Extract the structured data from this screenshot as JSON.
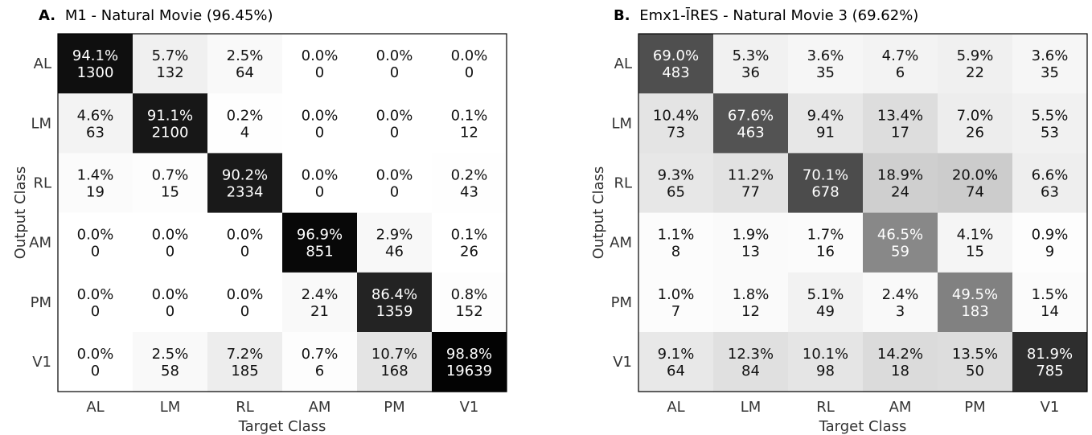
{
  "chart_data": [
    {
      "type": "heatmap",
      "panel_label": "A.",
      "title": "M1 - Natural Movie (96.45%)",
      "xlabel": "Target Class",
      "ylabel": "Output Class",
      "x_categories": [
        "AL",
        "LM",
        "RL",
        "AM",
        "PM",
        "V1"
      ],
      "y_categories": [
        "AL",
        "LM",
        "RL",
        "AM",
        "PM",
        "V1"
      ],
      "percent": [
        [
          "94.1%",
          "5.7%",
          "2.5%",
          "0.0%",
          "0.0%",
          "0.0%"
        ],
        [
          "4.6%",
          "91.1%",
          "0.2%",
          "0.0%",
          "0.0%",
          "0.1%"
        ],
        [
          "1.4%",
          "0.7%",
          "90.2%",
          "0.0%",
          "0.0%",
          "0.2%"
        ],
        [
          "0.0%",
          "0.0%",
          "0.0%",
          "96.9%",
          "2.9%",
          "0.1%"
        ],
        [
          "0.0%",
          "0.0%",
          "0.0%",
          "2.4%",
          "86.4%",
          "0.8%"
        ],
        [
          "0.0%",
          "2.5%",
          "7.2%",
          "0.7%",
          "10.7%",
          "98.8%"
        ]
      ],
      "counts": [
        [
          1300,
          132,
          64,
          0,
          0,
          0
        ],
        [
          63,
          2100,
          4,
          0,
          0,
          12
        ],
        [
          19,
          15,
          2334,
          0,
          0,
          43
        ],
        [
          0,
          0,
          0,
          851,
          46,
          26
        ],
        [
          0,
          0,
          0,
          21,
          1359,
          152
        ],
        [
          0,
          58,
          185,
          6,
          168,
          19639
        ]
      ],
      "colormap": "white-to-black",
      "grid": false
    },
    {
      "type": "heatmap",
      "panel_label": "B.",
      "title": "Emx1-ĪRES - Natural Movie 3 (69.62%)",
      "xlabel": "Target Class",
      "ylabel": "Output Class",
      "x_categories": [
        "AL",
        "LM",
        "RL",
        "AM",
        "PM",
        "V1"
      ],
      "y_categories": [
        "AL",
        "LM",
        "RL",
        "AM",
        "PM",
        "V1"
      ],
      "percent": [
        [
          "69.0%",
          "5.3%",
          "3.6%",
          "4.7%",
          "5.9%",
          "3.6%"
        ],
        [
          "10.4%",
          "67.6%",
          "9.4%",
          "13.4%",
          "7.0%",
          "5.5%"
        ],
        [
          "9.3%",
          "11.2%",
          "70.1%",
          "18.9%",
          "20.0%",
          "6.6%"
        ],
        [
          "1.1%",
          "1.9%",
          "1.7%",
          "46.5%",
          "4.1%",
          "0.9%"
        ],
        [
          "1.0%",
          "1.8%",
          "5.1%",
          "2.4%",
          "49.5%",
          "1.5%"
        ],
        [
          "9.1%",
          "12.3%",
          "10.1%",
          "14.2%",
          "13.5%",
          "81.9%"
        ]
      ],
      "counts": [
        [
          483,
          36,
          35,
          6,
          22,
          35
        ],
        [
          73,
          463,
          91,
          17,
          26,
          53
        ],
        [
          65,
          77,
          678,
          24,
          74,
          63
        ],
        [
          8,
          13,
          16,
          59,
          15,
          9
        ],
        [
          7,
          12,
          49,
          3,
          183,
          14
        ],
        [
          64,
          84,
          98,
          18,
          50,
          785
        ]
      ],
      "colormap": "white-to-black",
      "grid": false
    }
  ]
}
